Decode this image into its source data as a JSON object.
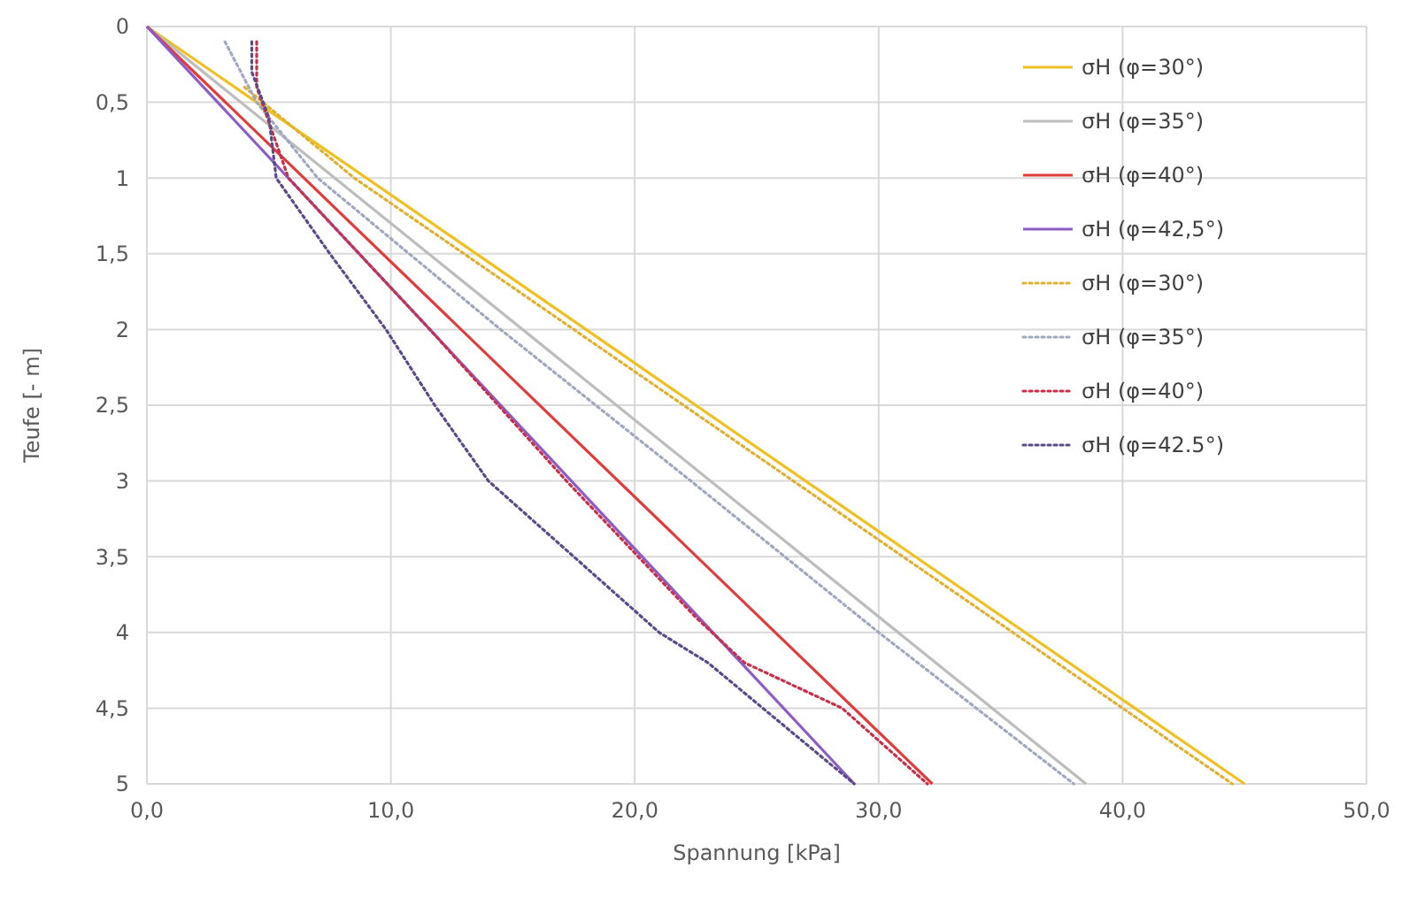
{
  "chart_data": {
    "type": "line",
    "xlabel": "Spannung [kPa]",
    "ylabel": "Teufe [- m]",
    "xlim": [
      0,
      50
    ],
    "ylim": [
      5,
      0
    ],
    "xticks": [
      {
        "value": 0,
        "label": "0,0"
      },
      {
        "value": 10,
        "label": "10,0"
      },
      {
        "value": 20,
        "label": "20,0"
      },
      {
        "value": 30,
        "label": "30,0"
      },
      {
        "value": 40,
        "label": "40,0"
      },
      {
        "value": 50,
        "label": "50,0"
      }
    ],
    "yticks": [
      0,
      {
        "value": 0.5,
        "label": "0,5"
      },
      1,
      {
        "value": 1.5,
        "label": "1,5"
      },
      2,
      {
        "value": 2.5,
        "label": "2,5"
      },
      3,
      {
        "value": 3.5,
        "label": "3,5"
      },
      4,
      {
        "value": 4.5,
        "label": "4,5"
      },
      5
    ],
    "grid": true,
    "legend": "top right",
    "marker": "none",
    "series": [
      {
        "name": "σH (φ=30°)",
        "color": "#f0c020",
        "line_style": "solid",
        "x": [
          0,
          45
        ],
        "values": [
          0,
          5
        ]
      },
      {
        "name": "σH (φ=35°)",
        "color": "#bdbdbd",
        "line_style": "solid",
        "x": [
          0,
          38.5
        ],
        "values": [
          0,
          5
        ]
      },
      {
        "name": "σH (φ=40°)",
        "color": "#e03c3c",
        "line_style": "solid",
        "x": [
          0,
          32.2
        ],
        "values": [
          0,
          5
        ]
      },
      {
        "name": "σH (φ=42,5°)",
        "color": "#8e5cc6",
        "line_style": "solid",
        "x": [
          0,
          29
        ],
        "values": [
          0,
          5
        ]
      },
      {
        "name": "σH (φ=30°)",
        "color": "#e0b030",
        "line_style": "dotted",
        "x": [
          4,
          8.5,
          17.5,
          26.5,
          35.5,
          44.5
        ],
        "values": [
          0.4,
          1,
          2,
          3,
          4,
          5
        ]
      },
      {
        "name": "σH (φ=35°)",
        "color": "#a0a8c0",
        "line_style": "dotted",
        "x": [
          3.2,
          4.5,
          7,
          14.5,
          22.3,
          30,
          38
        ],
        "values": [
          0.1,
          0.5,
          1,
          2,
          3,
          4,
          5
        ]
      },
      {
        "name": "σH (φ=40°)",
        "color": "#c8304a",
        "line_style": "dotted",
        "x": [
          4.5,
          4.5,
          5.8,
          11.6,
          17.2,
          22.5,
          24.5,
          28.5,
          32
        ],
        "values": [
          0.1,
          0.4,
          1,
          2,
          3,
          3.9,
          4.2,
          4.5,
          5
        ]
      },
      {
        "name": "σH (φ=42.5°)",
        "color": "#5a4a8a",
        "line_style": "dotted",
        "x": [
          4.3,
          4.3,
          5,
          5.3,
          7.5,
          9.8,
          11.8,
          14,
          17.5,
          21,
          23,
          26,
          29
        ],
        "values": [
          0.1,
          0.3,
          0.6,
          1,
          1.5,
          2,
          2.5,
          3,
          3.5,
          4,
          4.2,
          4.6,
          5
        ]
      }
    ]
  }
}
